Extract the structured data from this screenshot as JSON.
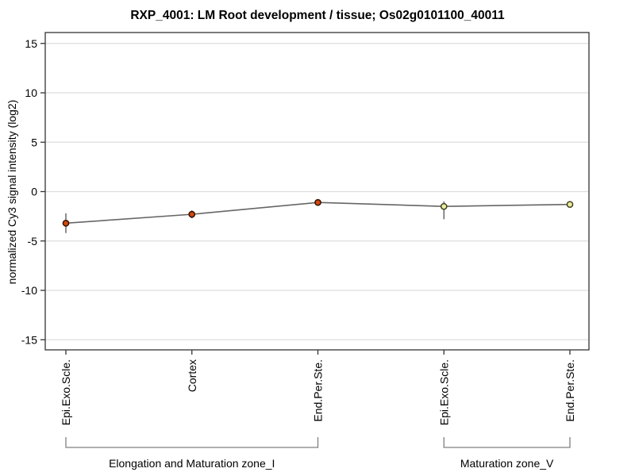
{
  "chart_data": {
    "type": "line",
    "title": "RXP_4001: LM Root development / tissue; Os02g0101100_40011",
    "ylabel": "normalized Cy3 signal intensity (log2)",
    "xlabel": "",
    "categories": [
      "Epi.Exo.Scle.",
      "Cortex",
      "End.Per.Ste.",
      "Epi.Exo.Scle.",
      "End.Per.Ste."
    ],
    "values": [
      -3.2,
      -2.3,
      -1.1,
      -1.5,
      -1.3
    ],
    "error_up": [
      1.0,
      0.4,
      0.2,
      0.5,
      0.1
    ],
    "error_down": [
      1.0,
      0.4,
      0.2,
      1.3,
      0.1
    ],
    "ylim": [
      -16,
      16
    ],
    "yticks": [
      -15,
      -10,
      -5,
      0,
      5,
      10,
      15
    ],
    "grid": "horizontal",
    "legend": "none",
    "groups": [
      {
        "label": "Elongation and Maturation zone_I",
        "start": 0,
        "end": 2,
        "marker_fill": "#d2490c",
        "marker_stroke": "#331100"
      },
      {
        "label": "Maturation zone_V",
        "start": 3,
        "end": 4,
        "marker_fill": "#ececa0",
        "marker_stroke": "#3f3f1f"
      }
    ],
    "line_color": "#666666",
    "errorbar_color": "#444444",
    "gridline_color": "#dedede",
    "axis_color": "#333333",
    "bracket_color": "#808080",
    "text_color": "#000000"
  }
}
